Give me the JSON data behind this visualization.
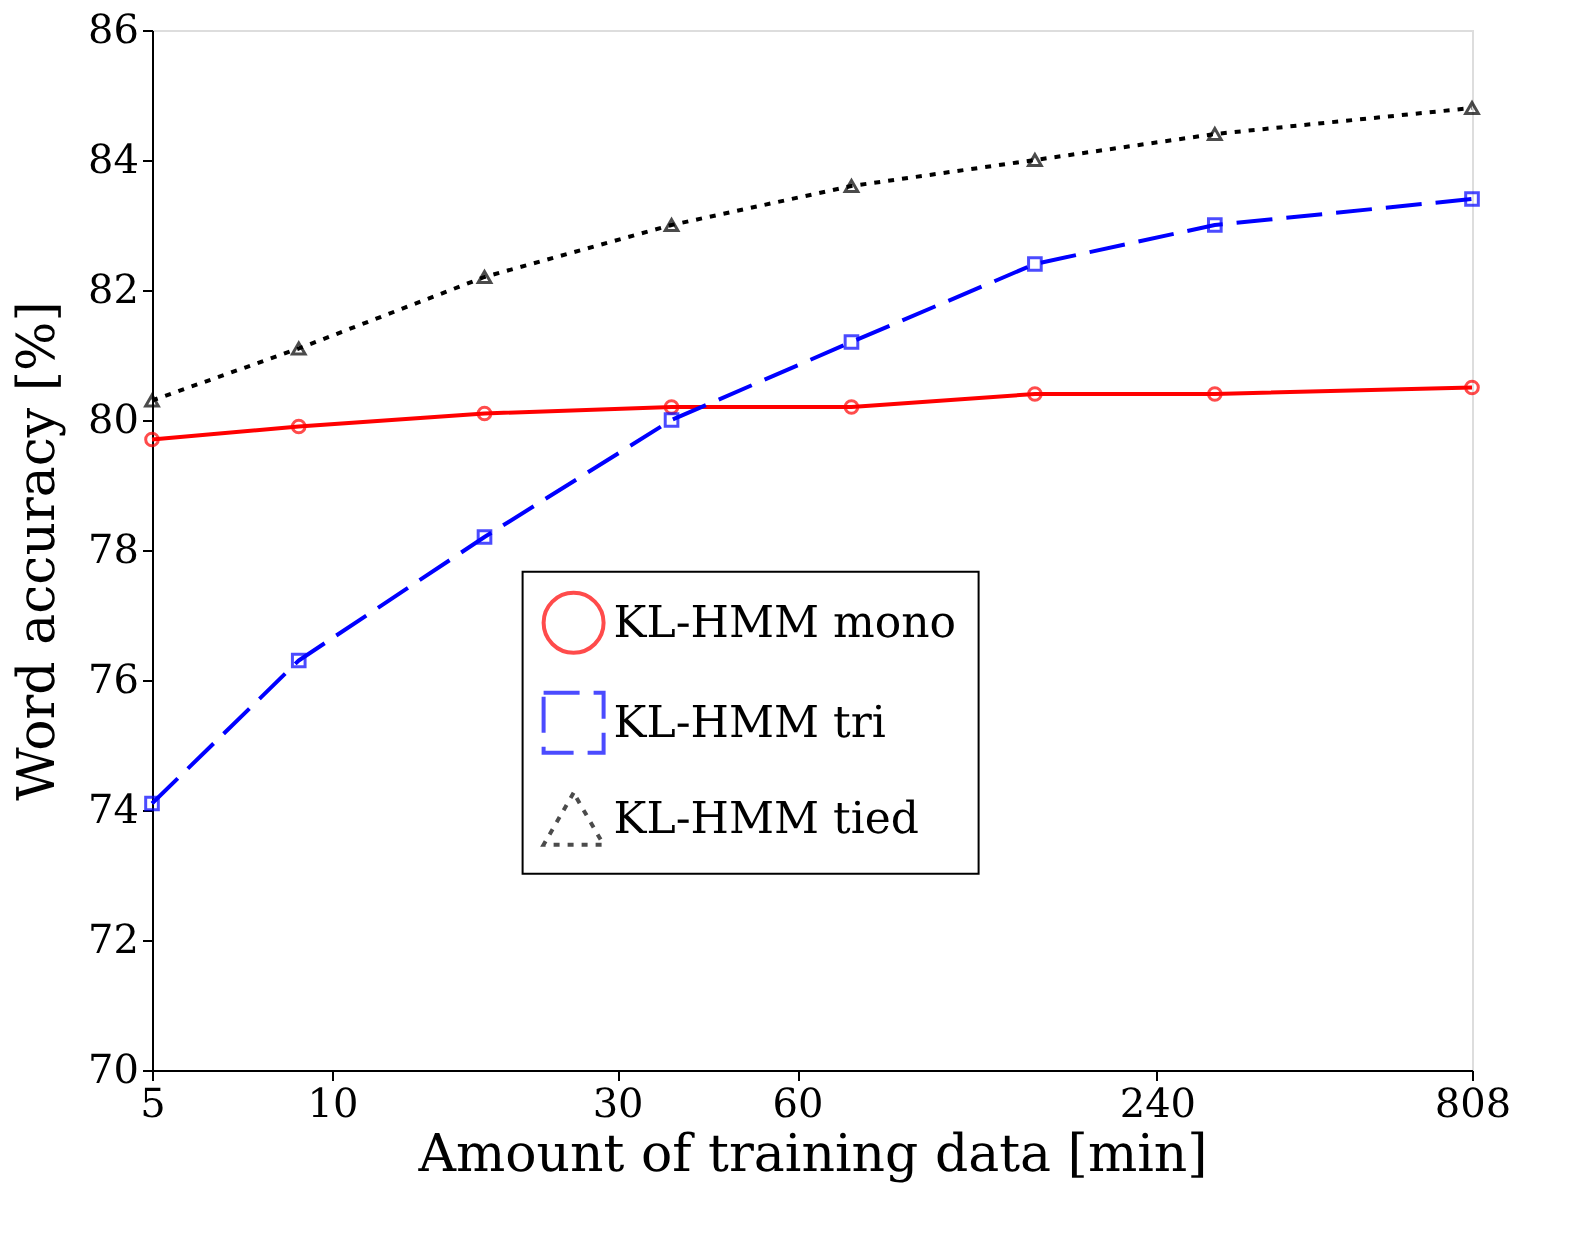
{
  "chart_data": {
    "type": "line",
    "xlabel": "Amount of training data [min]",
    "ylabel": "Word accuracy [%]",
    "x": [
      5,
      8.8,
      18,
      37,
      74,
      150,
      300,
      808
    ],
    "series": [
      {
        "name": "KL-HMM mono",
        "color": "#ff0000",
        "marker": "circle",
        "line_style": "solid",
        "values": [
          79.7,
          79.9,
          80.1,
          80.2,
          80.2,
          80.4,
          80.4,
          80.5
        ]
      },
      {
        "name": "KL-HMM tri",
        "color": "#0000ff",
        "marker": "square",
        "line_style": "dashed",
        "values": [
          74.1,
          76.3,
          78.2,
          80.0,
          81.2,
          82.4,
          83.0,
          83.4
        ]
      },
      {
        "name": "KL-HMM tied",
        "color": "#000000",
        "marker": "triangle",
        "line_style": "dotted",
        "values": [
          80.3,
          81.1,
          82.2,
          83.0,
          83.6,
          84.0,
          84.4,
          84.8
        ]
      }
    ],
    "log": "x",
    "xlim": [
      5,
      808
    ],
    "xticks": [
      5,
      10,
      30,
      60,
      240,
      808
    ],
    "ylim": [
      70,
      86
    ],
    "yticks": [
      70,
      72,
      74,
      76,
      78,
      80,
      82,
      84,
      86
    ],
    "grid": false,
    "legend": "center"
  }
}
